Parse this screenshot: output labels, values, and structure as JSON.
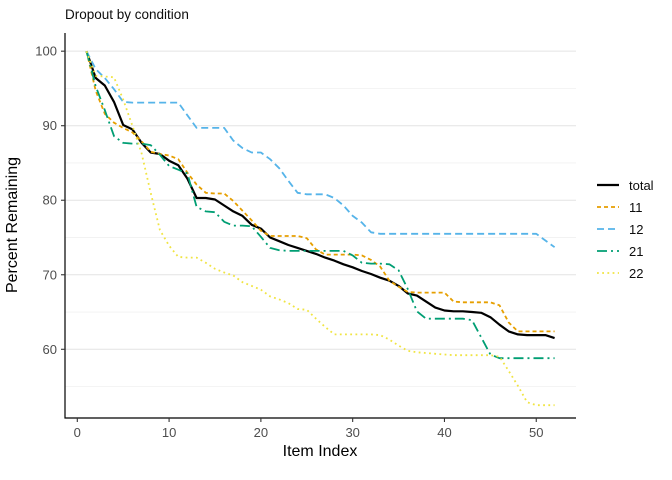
{
  "chart_data": {
    "type": "line",
    "title": "Dropout by condition",
    "xlabel": "Item Index",
    "ylabel": "Percent Remaining",
    "xlim": [
      -1.34,
      54.33
    ],
    "ylim": [
      50.78,
      102.44
    ],
    "x_ticks": [
      0,
      10,
      20,
      30,
      40,
      50
    ],
    "y_ticks": [
      60,
      70,
      80,
      90,
      100
    ],
    "y_minor_ticks": [
      55,
      65,
      75,
      85,
      95
    ],
    "grid": "horizontal-only",
    "legend_position": "right",
    "axis_text_color": "#4d4d4d",
    "grid_major_color": "#e4e4e4",
    "grid_minor_color": "#f2f2f2",
    "x": [
      1,
      2,
      3,
      4,
      5,
      6,
      7,
      8,
      9,
      10,
      11,
      12,
      13,
      14,
      15,
      16,
      17,
      18,
      19,
      20,
      21,
      22,
      23,
      24,
      25,
      26,
      27,
      28,
      29,
      30,
      31,
      32,
      33,
      34,
      35,
      36,
      37,
      38,
      39,
      40,
      41,
      42,
      43,
      44,
      45,
      46,
      47,
      48,
      49,
      50,
      51,
      52
    ],
    "series": [
      {
        "name": "total",
        "color": "#000000",
        "linetype": "solid",
        "dasharray": "",
        "width": 2.2,
        "values": [
          100,
          96.4,
          95.4,
          93.2,
          90.1,
          89.5,
          87.7,
          86.4,
          86.2,
          85.3,
          84.7,
          82.9,
          80.3,
          80.3,
          80.1,
          79.3,
          78.5,
          77.9,
          76.7,
          76.2,
          75,
          74.5,
          74,
          73.6,
          73.2,
          72.8,
          72.3,
          71.9,
          71.4,
          71,
          70.5,
          70.1,
          69.6,
          69.2,
          68.5,
          67.5,
          67.2,
          66.4,
          65.6,
          65.2,
          65.1,
          65.1,
          65,
          64.9,
          64.3,
          63.3,
          62.4,
          62,
          61.9,
          61.9,
          61.9,
          61.5
        ]
      },
      {
        "name": "11",
        "color": "#E69F00",
        "linetype": "dashed",
        "dasharray": "4 3",
        "width": 1.8,
        "values": [
          100,
          94.7,
          91.6,
          90.4,
          89.7,
          89.1,
          87.9,
          86.5,
          86.2,
          86,
          85.5,
          83.7,
          82.1,
          81,
          80.9,
          80.9,
          79.9,
          78.6,
          77.3,
          75.9,
          75.2,
          75.2,
          75.2,
          75.2,
          74.9,
          73.4,
          72.7,
          72.7,
          72.7,
          72.7,
          72.6,
          72,
          71.1,
          69.2,
          68.4,
          67.7,
          67.6,
          67.6,
          67.6,
          67.6,
          66.4,
          66.3,
          66.3,
          66.3,
          66.3,
          65.9,
          63.6,
          62.4,
          62.4,
          62.4,
          62.4,
          62.4
        ]
      },
      {
        "name": "12",
        "color": "#56B4E9",
        "linetype": "longdash",
        "dasharray": "7 4",
        "width": 1.8,
        "values": [
          100,
          97.6,
          96.4,
          94.9,
          93.2,
          93.1,
          93.1,
          93.1,
          93.1,
          93.1,
          93.1,
          91.4,
          89.7,
          89.7,
          89.7,
          89.7,
          88,
          87,
          86.4,
          86.4,
          85.5,
          84.3,
          82.6,
          81,
          80.8,
          80.8,
          80.8,
          80.3,
          79.3,
          77.9,
          77,
          75.7,
          75.5,
          75.5,
          75.5,
          75.5,
          75.5,
          75.5,
          75.5,
          75.5,
          75.5,
          75.5,
          75.5,
          75.5,
          75.5,
          75.5,
          75.5,
          75.5,
          75.5,
          75.5,
          74.6,
          73.7
        ]
      },
      {
        "name": "21",
        "color": "#009E73",
        "linetype": "dotdash",
        "dasharray": "10 4 2 4",
        "width": 1.8,
        "values": [
          100,
          95.3,
          92.1,
          88.6,
          87.7,
          87.6,
          87.6,
          87.4,
          86.1,
          84.6,
          84.1,
          83.6,
          79.1,
          78.5,
          78.4,
          77.1,
          76.6,
          76.6,
          76.5,
          75.1,
          73.6,
          73.3,
          73.2,
          73.2,
          73.2,
          73.2,
          73.2,
          73.2,
          73.2,
          72.6,
          71.6,
          71.5,
          71.5,
          71.4,
          70.6,
          68.1,
          65.1,
          64.1,
          64.1,
          64.1,
          64.1,
          64.1,
          63.9,
          61.6,
          59.3,
          58.8,
          58.8,
          58.8,
          58.8,
          58.8,
          58.8,
          58.8
        ]
      },
      {
        "name": "22",
        "color": "#F0E442",
        "linetype": "dotted",
        "dasharray": "1.8 3.4",
        "width": 1.8,
        "values": [
          100,
          96.7,
          96.6,
          96.5,
          93.5,
          90,
          86.3,
          81,
          76,
          73.9,
          72.4,
          72.3,
          72.3,
          71.6,
          70.8,
          70.3,
          69.9,
          69,
          68.5,
          68,
          67.1,
          66.7,
          66.2,
          65.4,
          65.3,
          64.1,
          63,
          62,
          62,
          62,
          62,
          62,
          61.9,
          61.3,
          60.5,
          59.8,
          59.6,
          59.5,
          59.4,
          59.3,
          59.2,
          59.2,
          59.2,
          59.2,
          59.2,
          59,
          57.1,
          55.1,
          52.9,
          52.5,
          52.5,
          52.5
        ]
      }
    ]
  }
}
